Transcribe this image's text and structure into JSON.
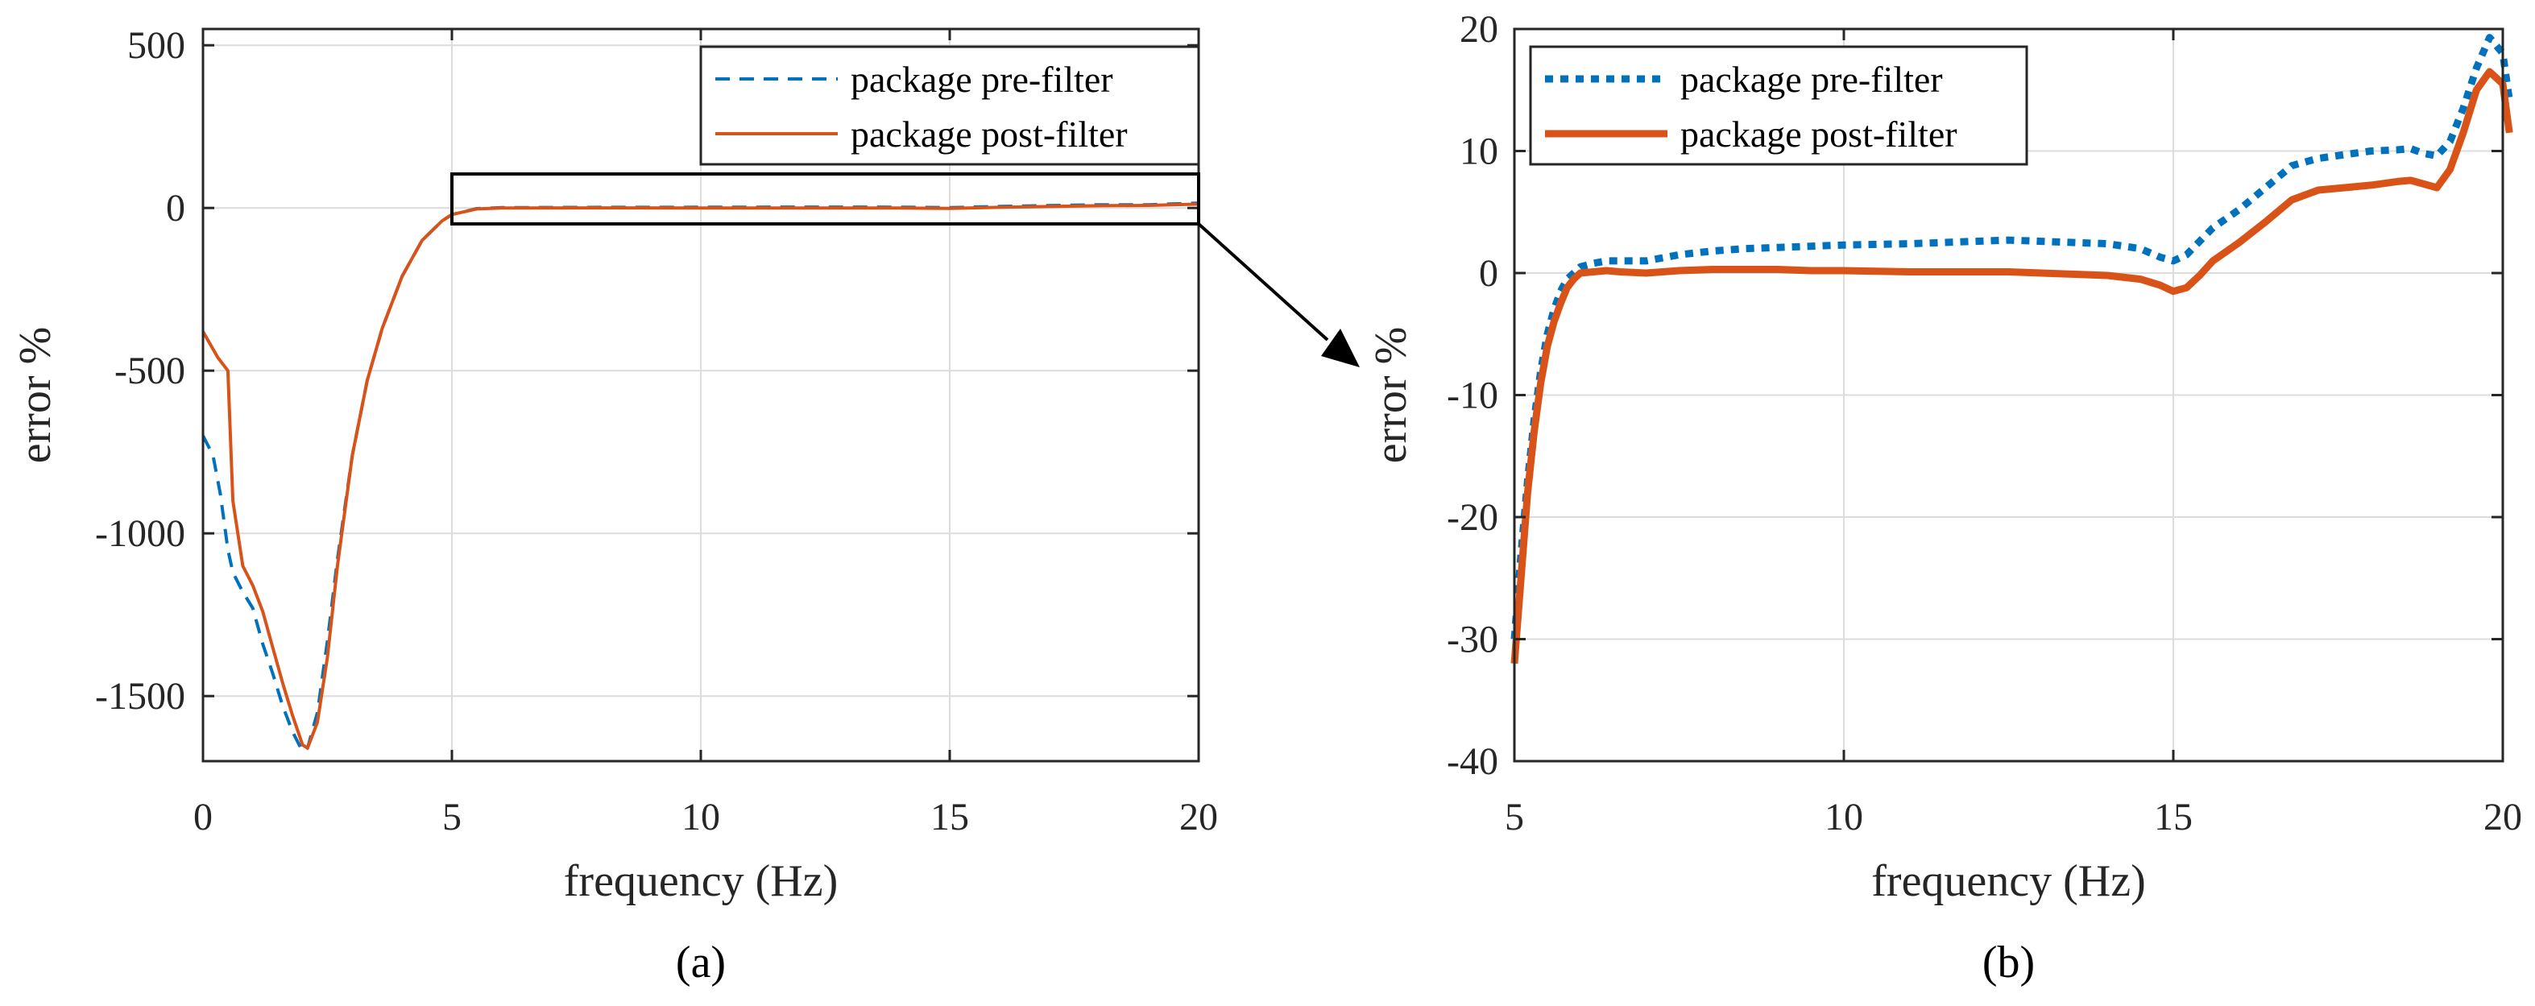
{
  "chart_data": [
    {
      "type": "line",
      "panel_label": "(a)",
      "xlabel": "frequency (Hz)",
      "ylabel": "error %",
      "xlim": [
        0,
        20
      ],
      "ylim": [
        -1700,
        550
      ],
      "xticks": [
        0,
        5,
        10,
        15,
        20
      ],
      "yticks": [
        500,
        0,
        -500,
        -1000,
        -1500
      ],
      "grid": true,
      "legend_position": "top-right",
      "series": [
        {
          "name": "package pre-filter",
          "color": "#0072BD",
          "style": "dashed",
          "x": [
            0,
            0.2,
            0.35,
            0.5,
            0.6,
            0.8,
            1.0,
            1.2,
            1.4,
            1.6,
            1.8,
            2.0,
            2.1,
            2.3,
            2.5,
            2.7,
            3.0,
            3.3,
            3.6,
            4.0,
            4.4,
            4.8,
            5.0,
            5.5,
            6,
            8,
            10,
            12,
            14,
            15,
            16,
            18,
            19,
            20
          ],
          "y": [
            -700,
            -760,
            -880,
            -1050,
            -1120,
            -1180,
            -1230,
            -1340,
            -1430,
            -1530,
            -1610,
            -1670,
            -1660,
            -1550,
            -1330,
            -1080,
            -760,
            -530,
            -370,
            -210,
            -100,
            -40,
            -20,
            -2,
            1,
            2,
            2.3,
            2.6,
            2.4,
            1,
            5,
            10,
            10,
            15
          ]
        },
        {
          "name": "package post-filter",
          "color": "#D95319",
          "style": "solid",
          "x": [
            0,
            0.3,
            0.5,
            0.6,
            0.8,
            1.0,
            1.2,
            1.4,
            1.6,
            1.8,
            2.0,
            2.1,
            2.3,
            2.5,
            2.7,
            3.0,
            3.3,
            3.6,
            4.0,
            4.4,
            4.8,
            5.0,
            5.5,
            6,
            8,
            10,
            12,
            14,
            15,
            16,
            18,
            19,
            20
          ],
          "y": [
            -380,
            -460,
            -500,
            -900,
            -1100,
            -1160,
            -1240,
            -1350,
            -1460,
            -1560,
            -1650,
            -1660,
            -1580,
            -1380,
            -1100,
            -760,
            -530,
            -370,
            -210,
            -100,
            -40,
            -20,
            -3,
            0,
            0.3,
            0.1,
            0.1,
            0,
            -1.5,
            2,
            7,
            8,
            12
          ]
        }
      ]
    },
    {
      "type": "line",
      "panel_label": "(b)",
      "xlabel": "frequency (Hz)",
      "ylabel": "error %",
      "xlim": [
        5,
        20
      ],
      "ylim": [
        -40,
        20
      ],
      "xticks": [
        5,
        10,
        15,
        20
      ],
      "yticks": [
        20,
        10,
        0,
        -10,
        -20,
        -30,
        -40
      ],
      "grid": true,
      "legend_position": "top-left",
      "series": [
        {
          "name": "package pre-filter",
          "color": "#0072BD",
          "style": "dotted",
          "x": [
            5.0,
            5.1,
            5.2,
            5.3,
            5.4,
            5.5,
            5.6,
            5.7,
            5.8,
            5.9,
            6.0,
            6.2,
            6.4,
            6.6,
            7.0,
            7.5,
            8.0,
            8.5,
            9.0,
            9.5,
            10.0,
            11.0,
            12.0,
            12.5,
            13.0,
            13.5,
            14.0,
            14.5,
            14.8,
            15.0,
            15.2,
            15.4,
            15.6,
            16.0,
            16.4,
            16.8,
            17.2,
            17.6,
            18.0,
            18.4,
            18.6,
            18.8,
            19.0,
            19.2,
            19.4,
            19.6,
            19.8,
            20.0,
            20.1
          ],
          "y": [
            -30,
            -23,
            -17,
            -12,
            -8,
            -5,
            -3,
            -1.5,
            -0.5,
            0,
            0.5,
            0.8,
            1.0,
            1.0,
            1.0,
            1.5,
            1.8,
            2.0,
            2.1,
            2.2,
            2.3,
            2.4,
            2.6,
            2.7,
            2.6,
            2.5,
            2.4,
            2.0,
            1.3,
            1.0,
            1.5,
            2.6,
            3.7,
            5.2,
            7.0,
            8.8,
            9.4,
            9.7,
            10.0,
            10.1,
            10.2,
            9.8,
            9.6,
            10.8,
            13.5,
            16.8,
            19.3,
            18.0,
            14.2
          ]
        },
        {
          "name": "package post-filter",
          "color": "#D95319",
          "style": "solid",
          "x": [
            5.0,
            5.1,
            5.2,
            5.3,
            5.4,
            5.5,
            5.6,
            5.7,
            5.8,
            5.9,
            6.0,
            6.2,
            6.4,
            6.6,
            7.0,
            7.5,
            8.0,
            8.5,
            9.0,
            9.5,
            10.0,
            11.0,
            12.0,
            12.5,
            13.0,
            13.5,
            14.0,
            14.5,
            14.8,
            15.0,
            15.2,
            15.4,
            15.6,
            16.0,
            16.4,
            16.8,
            17.2,
            17.6,
            18.0,
            18.4,
            18.6,
            18.8,
            19.0,
            19.2,
            19.4,
            19.6,
            19.8,
            20.0,
            20.1
          ],
          "y": [
            -32,
            -25,
            -18,
            -13,
            -9,
            -6,
            -4,
            -2.5,
            -1.2,
            -0.5,
            0,
            0.1,
            0.2,
            0.1,
            0,
            0.2,
            0.3,
            0.3,
            0.3,
            0.2,
            0.2,
            0.1,
            0.1,
            0.1,
            0.0,
            -0.1,
            -0.2,
            -0.5,
            -1.0,
            -1.5,
            -1.2,
            -0.2,
            1.0,
            2.5,
            4.2,
            6.0,
            6.8,
            7.0,
            7.2,
            7.5,
            7.6,
            7.3,
            7.0,
            8.5,
            11.5,
            15.0,
            16.5,
            15.5,
            11.5
          ]
        }
      ]
    }
  ]
}
